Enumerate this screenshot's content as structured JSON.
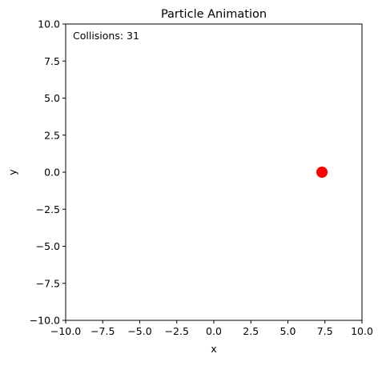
{
  "chart_data": {
    "type": "scatter",
    "title": "Particle Animation",
    "xlabel": "x",
    "ylabel": "y",
    "xlim": [
      -10,
      10
    ],
    "ylim": [
      -10,
      10
    ],
    "xticks": [
      -10,
      -7.5,
      -5,
      -2.5,
      0,
      2.5,
      5,
      7.5,
      10
    ],
    "yticks": [
      -10,
      -7.5,
      -5,
      -2.5,
      0,
      2.5,
      5,
      7.5,
      10
    ],
    "xtick_labels": [
      "−10.0",
      "−7.5",
      "−5.0",
      "−2.5",
      "0.0",
      "2.5",
      "5.0",
      "7.5",
      "10.0"
    ],
    "ytick_labels": [
      "−10.0",
      "−7.5",
      "−5.0",
      "−2.5",
      "0.0",
      "2.5",
      "5.0",
      "7.5",
      "10.0"
    ],
    "grid": false,
    "annotation": "Collisions: 31",
    "points": [
      {
        "x": 7.3,
        "y": 0.0,
        "color": "#ff0000"
      }
    ]
  }
}
